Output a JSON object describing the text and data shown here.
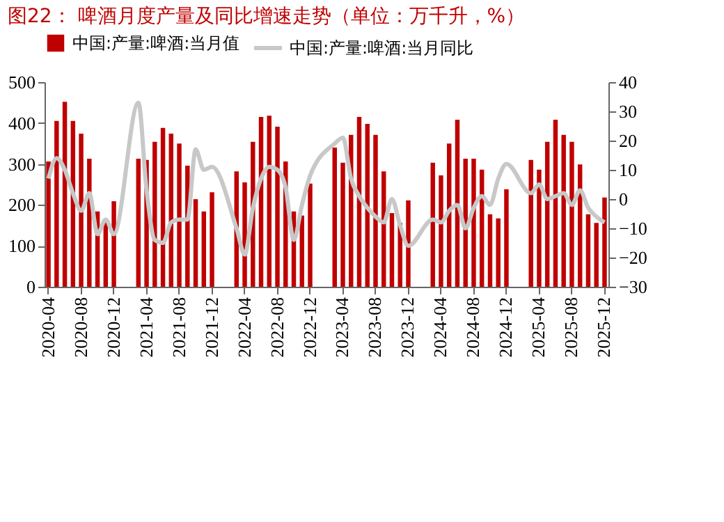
{
  "chart_data": {
    "type": "bar",
    "title": "图22：  啤酒月度产量及同比增速走势（单位：万千升，%）",
    "categories": [
      "2020-04",
      null,
      null,
      null,
      "2020-08",
      null,
      null,
      null,
      "2020-12",
      null,
      null,
      null,
      "2021-04",
      null,
      null,
      null,
      "2021-08",
      null,
      null,
      null,
      "2021-12",
      null,
      null,
      null,
      "2022-04",
      null,
      null,
      null,
      "2022-08",
      null,
      null,
      null,
      "2022-12",
      null,
      null,
      null,
      "2023-04",
      null,
      null,
      null,
      "2023-08",
      null,
      null,
      null,
      "2023-12",
      null,
      null,
      null,
      "2024-04",
      null,
      null,
      null,
      "2024-08",
      null,
      null,
      null,
      "2024-12",
      null,
      null,
      null,
      "2025-04",
      null,
      null,
      null,
      "2025-08",
      null,
      null,
      null,
      "2025-12"
    ],
    "series": [
      {
        "name": "中国:产量:啤酒:当月值",
        "color": "#c00000",
        "values": [
          306,
          405,
          452,
          405,
          374,
          313,
          184,
          165,
          209,
          null,
          null,
          313,
          310,
          354,
          388,
          374,
          350,
          296,
          214,
          184,
          231,
          null,
          null,
          282,
          255,
          354,
          415,
          418,
          391,
          306,
          184,
          174,
          252,
          null,
          null,
          340,
          303,
          371,
          415,
          398,
          371,
          282,
          180,
          156,
          211,
          null,
          null,
          303,
          272,
          350,
          408,
          313,
          313,
          286,
          177,
          167,
          238,
          null,
          null,
          310,
          286,
          354,
          408,
          371,
          354,
          299,
          177,
          156,
          218
        ]
      },
      {
        "name": "中国:产量:啤酒:当月同比",
        "type": "line",
        "axis": "y2",
        "color": "#c8c8c8",
        "values": [
          7,
          14,
          10,
          2,
          -4,
          2,
          -12,
          -7,
          -12,
          null,
          null,
          33,
          3,
          -14,
          -15,
          -8,
          -7,
          -7,
          17,
          10,
          11,
          null,
          null,
          -10,
          -19,
          -3,
          7,
          11,
          10,
          4,
          -14,
          -2,
          8,
          null,
          null,
          19,
          21,
          7,
          1,
          -3,
          -6,
          -8,
          0,
          -9,
          -16,
          null,
          null,
          -7,
          -8,
          -4,
          -2,
          -10,
          -3,
          1,
          -2,
          7,
          12,
          null,
          null,
          2,
          5,
          0,
          1,
          2,
          -2,
          3,
          -3,
          -6,
          -8
        ]
      }
    ],
    "ylim": [
      0,
      500
    ],
    "yticks": [
      0,
      100,
      200,
      300,
      400,
      500
    ],
    "y2lim": [
      -30,
      40
    ],
    "y2ticks": [
      -30,
      -20,
      -10,
      0,
      10,
      20,
      30,
      40
    ],
    "grid": false,
    "legend": "top"
  }
}
